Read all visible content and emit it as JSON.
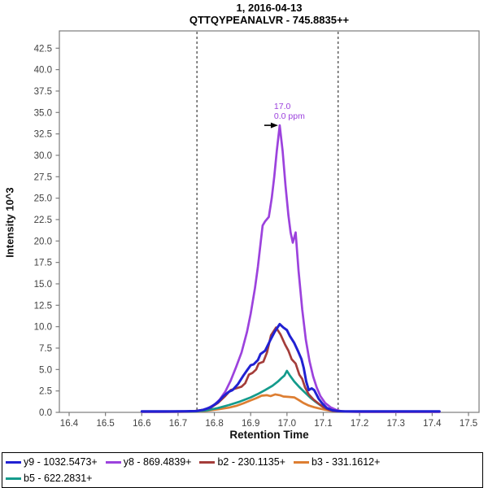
{
  "title": {
    "line1": "1, 2016-04-13",
    "line2": "QTTQYPEANALVR - 745.8835++"
  },
  "axes": {
    "x_label": "Retention Time",
    "y_label": "Intensity 10^3"
  },
  "annotation": {
    "rt_label": "17.0",
    "ppm_label": "0.0 ppm",
    "rt": 16.98,
    "intensity": 33.5,
    "color": "#9c42dd"
  },
  "colors": {
    "frame": "#7b7b7b",
    "tick_label": "#3f3f3f",
    "boundary_line": "#2a2a2a",
    "arrow": "#000000"
  },
  "chart_data": {
    "type": "line",
    "title": "1, 2016-04-13",
    "subtitle": "QTTQYPEANALVR - 745.8835++",
    "xlabel": "Retention Time",
    "ylabel": "Intensity 10^3",
    "xlim": [
      16.3731,
      17.5291
    ],
    "ylim": [
      0,
      44.52
    ],
    "x_ticks": [
      "16.4",
      "16.5",
      "16.6",
      "16.7",
      "16.8",
      "16.9",
      "17.0",
      "17.1",
      "17.2",
      "17.3",
      "17.4",
      "17.5"
    ],
    "y_ticks": [
      "0.0",
      "2.5",
      "5.0",
      "7.5",
      "10.0",
      "12.5",
      "15.0",
      "17.5",
      "20.0",
      "22.5",
      "25.0",
      "27.5",
      "30.0",
      "32.5",
      "35.0",
      "37.5",
      "40.0",
      "42.5"
    ],
    "grid": false,
    "legend_position": "bottom",
    "peak_boundaries": [
      16.752,
      17.141
    ],
    "peak_annotation": {
      "rt": "17.0",
      "mass_error": "0.0 ppm"
    },
    "draw_order": [
      3,
      4,
      2,
      1,
      0
    ],
    "series": [
      {
        "name": "y9 - 1032.5473+",
        "color": "#2121d2",
        "points": [
          [
            16.6,
            0.12
          ],
          [
            16.64,
            0.12
          ],
          [
            16.68,
            0.12
          ],
          [
            16.72,
            0.13
          ],
          [
            16.75,
            0.15
          ],
          [
            16.77,
            0.3
          ],
          [
            16.79,
            0.6
          ],
          [
            16.81,
            1.2
          ],
          [
            16.825,
            1.9
          ],
          [
            16.84,
            2.4
          ],
          [
            16.85,
            2.6
          ],
          [
            16.865,
            3.3
          ],
          [
            16.88,
            4.3
          ],
          [
            16.89,
            4.9
          ],
          [
            16.9,
            5.5
          ],
          [
            16.908,
            5.6
          ],
          [
            16.92,
            6.1
          ],
          [
            16.927,
            6.8
          ],
          [
            16.94,
            7.2
          ],
          [
            16.955,
            8.5
          ],
          [
            16.966,
            9.4
          ],
          [
            16.98,
            10.3
          ],
          [
            16.99,
            9.9
          ],
          [
            17.0,
            9.6
          ],
          [
            17.008,
            8.9
          ],
          [
            17.02,
            8.1
          ],
          [
            17.03,
            7.2
          ],
          [
            17.04,
            6.2
          ],
          [
            17.046,
            5.2
          ],
          [
            17.053,
            3.6
          ],
          [
            17.06,
            2.6
          ],
          [
            17.068,
            2.8
          ],
          [
            17.075,
            2.6
          ],
          [
            17.087,
            1.6
          ],
          [
            17.098,
            1.0
          ],
          [
            17.11,
            0.5
          ],
          [
            17.125,
            0.25
          ],
          [
            17.14,
            0.15
          ],
          [
            17.16,
            0.12
          ],
          [
            17.2,
            0.12
          ],
          [
            17.25,
            0.12
          ],
          [
            17.3,
            0.12
          ],
          [
            17.35,
            0.12
          ],
          [
            17.4,
            0.12
          ],
          [
            17.42,
            0.12
          ]
        ]
      },
      {
        "name": "y8 - 869.4839+",
        "color": "#9c42dd",
        "points": [
          [
            16.6,
            0.06
          ],
          [
            16.65,
            0.06
          ],
          [
            16.7,
            0.08
          ],
          [
            16.74,
            0.12
          ],
          [
            16.76,
            0.2
          ],
          [
            16.78,
            0.45
          ],
          [
            16.8,
            0.9
          ],
          [
            16.815,
            1.5
          ],
          [
            16.83,
            2.4
          ],
          [
            16.845,
            3.7
          ],
          [
            16.86,
            5.3
          ],
          [
            16.875,
            7.0
          ],
          [
            16.89,
            9.4
          ],
          [
            16.9,
            11.5
          ],
          [
            16.912,
            14.5
          ],
          [
            16.92,
            17.0
          ],
          [
            16.928,
            20.0
          ],
          [
            16.933,
            21.8
          ],
          [
            16.94,
            22.3
          ],
          [
            16.95,
            22.8
          ],
          [
            16.958,
            25.0
          ],
          [
            16.965,
            27.5
          ],
          [
            16.972,
            30.5
          ],
          [
            16.98,
            33.5
          ],
          [
            16.988,
            30.5
          ],
          [
            16.996,
            26.5
          ],
          [
            17.004,
            23.0
          ],
          [
            17.01,
            21.0
          ],
          [
            17.016,
            19.8
          ],
          [
            17.024,
            21.0
          ],
          [
            17.032,
            16.5
          ],
          [
            17.042,
            12.0
          ],
          [
            17.052,
            8.5
          ],
          [
            17.062,
            6.0
          ],
          [
            17.072,
            4.2
          ],
          [
            17.082,
            2.9
          ],
          [
            17.092,
            1.9
          ],
          [
            17.105,
            1.1
          ],
          [
            17.12,
            0.6
          ],
          [
            17.135,
            0.3
          ],
          [
            17.15,
            0.12
          ],
          [
            17.17,
            0.08
          ],
          [
            17.2,
            0.06
          ],
          [
            17.25,
            0.06
          ],
          [
            17.3,
            0.06
          ],
          [
            17.35,
            0.06
          ],
          [
            17.4,
            0.06
          ],
          [
            17.42,
            0.06
          ]
        ]
      },
      {
        "name": "b2 - 230.1135+",
        "color": "#a43d3a",
        "points": [
          [
            16.6,
            0.1
          ],
          [
            16.65,
            0.1
          ],
          [
            16.7,
            0.1
          ],
          [
            16.74,
            0.12
          ],
          [
            16.77,
            0.3
          ],
          [
            16.79,
            0.55
          ],
          [
            16.81,
            1.1
          ],
          [
            16.83,
            1.9
          ],
          [
            16.845,
            2.6
          ],
          [
            16.86,
            2.8
          ],
          [
            16.875,
            3.0
          ],
          [
            16.885,
            3.4
          ],
          [
            16.895,
            4.4
          ],
          [
            16.905,
            4.6
          ],
          [
            16.915,
            5.0
          ],
          [
            16.922,
            5.7
          ],
          [
            16.935,
            5.9
          ],
          [
            16.945,
            7.0
          ],
          [
            16.956,
            9.0
          ],
          [
            16.97,
            9.9
          ],
          [
            16.982,
            9.1
          ],
          [
            16.995,
            7.9
          ],
          [
            17.004,
            7.2
          ],
          [
            17.013,
            6.2
          ],
          [
            17.024,
            5.7
          ],
          [
            17.034,
            4.4
          ],
          [
            17.042,
            3.9
          ],
          [
            17.05,
            2.9
          ],
          [
            17.06,
            2.1
          ],
          [
            17.073,
            1.5
          ],
          [
            17.088,
            1.0
          ],
          [
            17.1,
            0.6
          ],
          [
            17.115,
            0.3
          ],
          [
            17.13,
            0.15
          ],
          [
            17.15,
            0.1
          ],
          [
            17.2,
            0.1
          ],
          [
            17.25,
            0.1
          ],
          [
            17.3,
            0.1
          ],
          [
            17.35,
            0.1
          ],
          [
            17.4,
            0.1
          ],
          [
            17.42,
            0.1
          ]
        ]
      },
      {
        "name": "b3 - 331.1612+",
        "color": "#dd7e32",
        "points": [
          [
            16.6,
            0.05
          ],
          [
            16.65,
            0.05
          ],
          [
            16.7,
            0.06
          ],
          [
            16.75,
            0.08
          ],
          [
            16.78,
            0.2
          ],
          [
            16.81,
            0.35
          ],
          [
            16.84,
            0.55
          ],
          [
            16.86,
            0.75
          ],
          [
            16.88,
            1.05
          ],
          [
            16.9,
            1.4
          ],
          [
            16.915,
            1.65
          ],
          [
            16.93,
            1.95
          ],
          [
            16.945,
            2.0
          ],
          [
            16.955,
            1.9
          ],
          [
            16.968,
            2.1
          ],
          [
            16.98,
            2.0
          ],
          [
            16.99,
            1.85
          ],
          [
            17.005,
            1.8
          ],
          [
            17.02,
            1.75
          ],
          [
            17.032,
            1.45
          ],
          [
            17.045,
            1.1
          ],
          [
            17.06,
            0.8
          ],
          [
            17.075,
            0.6
          ],
          [
            17.09,
            0.45
          ],
          [
            17.105,
            0.3
          ],
          [
            17.12,
            0.2
          ],
          [
            17.14,
            0.12
          ],
          [
            17.16,
            0.08
          ],
          [
            17.2,
            0.06
          ],
          [
            17.25,
            0.05
          ],
          [
            17.3,
            0.05
          ],
          [
            17.35,
            0.05
          ],
          [
            17.4,
            0.05
          ],
          [
            17.42,
            0.05
          ]
        ]
      },
      {
        "name": "b5 - 622.2831+",
        "color": "#149b8c",
        "points": [
          [
            16.6,
            0.06
          ],
          [
            16.65,
            0.06
          ],
          [
            16.7,
            0.07
          ],
          [
            16.75,
            0.1
          ],
          [
            16.78,
            0.25
          ],
          [
            16.81,
            0.5
          ],
          [
            16.84,
            0.85
          ],
          [
            16.87,
            1.25
          ],
          [
            16.9,
            1.75
          ],
          [
            16.92,
            2.15
          ],
          [
            16.94,
            2.6
          ],
          [
            16.96,
            3.1
          ],
          [
            16.975,
            3.6
          ],
          [
            16.985,
            4.0
          ],
          [
            16.993,
            4.3
          ],
          [
            17.0,
            4.85
          ],
          [
            17.008,
            4.3
          ],
          [
            17.02,
            3.6
          ],
          [
            17.035,
            2.9
          ],
          [
            17.05,
            2.3
          ],
          [
            17.065,
            1.7
          ],
          [
            17.08,
            1.2
          ],
          [
            17.095,
            0.75
          ],
          [
            17.11,
            0.4
          ],
          [
            17.125,
            0.2
          ],
          [
            17.14,
            0.12
          ],
          [
            17.16,
            0.08
          ],
          [
            17.2,
            0.07
          ],
          [
            17.25,
            0.07
          ],
          [
            17.3,
            0.07
          ],
          [
            17.35,
            0.07
          ],
          [
            17.4,
            0.07
          ],
          [
            17.42,
            0.07
          ]
        ]
      }
    ]
  }
}
